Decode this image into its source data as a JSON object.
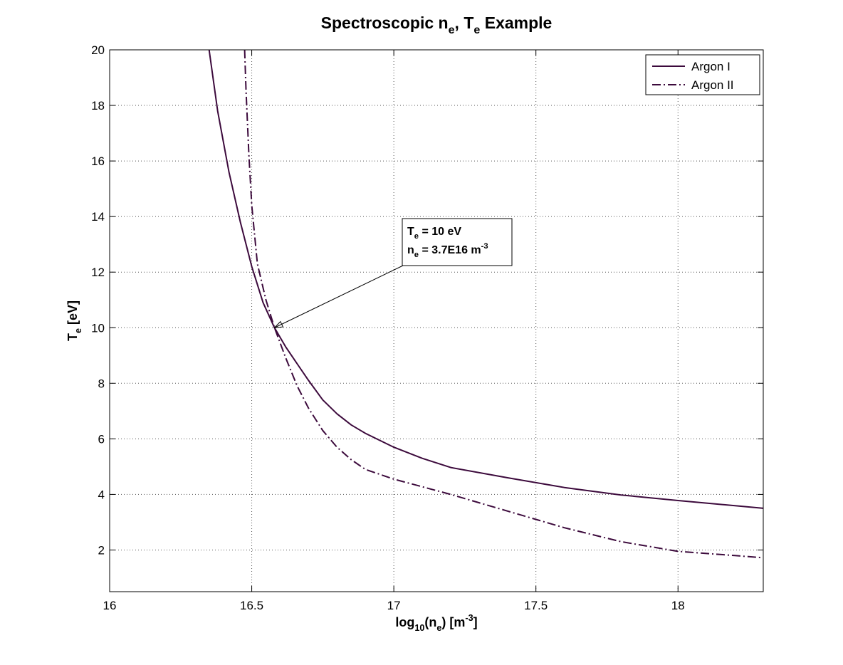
{
  "chart_data": {
    "type": "line",
    "title": {
      "main": "Spectroscopic n",
      "sub1": "e",
      "mid": ", T",
      "sub2": "e",
      "end": " Example"
    },
    "xlabel": {
      "pre": "log",
      "sub1": "10",
      "mid1": "(n",
      "sub2": "e",
      "mid2": ") [m",
      "sup": "-3",
      "end": "]"
    },
    "ylabel": {
      "main": "T",
      "sub": "e",
      "end": " [eV]"
    },
    "xlim": [
      16,
      18.3
    ],
    "ylim": [
      0.5,
      20
    ],
    "xticks": [
      16,
      16.5,
      17,
      17.5,
      18
    ],
    "xtick_labels": [
      "16",
      "16.5",
      "17",
      "17.5",
      "18"
    ],
    "yticks": [
      2,
      4,
      6,
      8,
      10,
      12,
      14,
      16,
      18,
      20
    ],
    "ytick_labels": [
      "2",
      "4",
      "6",
      "8",
      "10",
      "12",
      "14",
      "16",
      "18",
      "20"
    ],
    "grid": true,
    "legend_position": "top-right",
    "series": [
      {
        "name": "Argon I",
        "style": "solid",
        "color": "#3c0a3c",
        "x": [
          16.35,
          16.38,
          16.42,
          16.46,
          16.5,
          16.54,
          16.58,
          16.62,
          16.66,
          16.7,
          16.75,
          16.8,
          16.85,
          16.9,
          17.0,
          17.1,
          17.2,
          17.4,
          17.6,
          17.8,
          18.0,
          18.3
        ],
        "y": [
          20.0,
          17.8,
          15.6,
          13.8,
          12.2,
          10.9,
          10.0,
          9.3,
          8.7,
          8.1,
          7.4,
          6.9,
          6.5,
          6.2,
          5.7,
          5.3,
          4.97,
          4.6,
          4.25,
          3.98,
          3.78,
          3.5
        ]
      },
      {
        "name": "Argon II",
        "style": "dashdot",
        "color": "#3c0a3c",
        "x": [
          16.475,
          16.48,
          16.49,
          16.5,
          16.52,
          16.55,
          16.58,
          16.62,
          16.66,
          16.7,
          16.75,
          16.8,
          16.85,
          16.9,
          17.0,
          17.2,
          17.4,
          17.6,
          17.8,
          18.0,
          18.2,
          18.3
        ],
        "y": [
          20.0,
          18.5,
          16.2,
          14.4,
          12.3,
          11.0,
          10.0,
          8.9,
          7.9,
          7.1,
          6.3,
          5.7,
          5.25,
          4.9,
          4.55,
          4.0,
          3.4,
          2.8,
          2.3,
          1.95,
          1.8,
          1.72
        ]
      }
    ],
    "annotation": {
      "line1": {
        "pre": "T",
        "sub": "e",
        "end": " = 10 eV"
      },
      "line2": {
        "pre": "n",
        "sub": "e",
        "mid": " = 3.7E16 m",
        "sup": "-3"
      },
      "target": {
        "x": 16.58,
        "y": 10.0
      }
    },
    "colors": {
      "series": "#3c0a3c",
      "grid": "#555555",
      "axes": "#000000"
    }
  }
}
